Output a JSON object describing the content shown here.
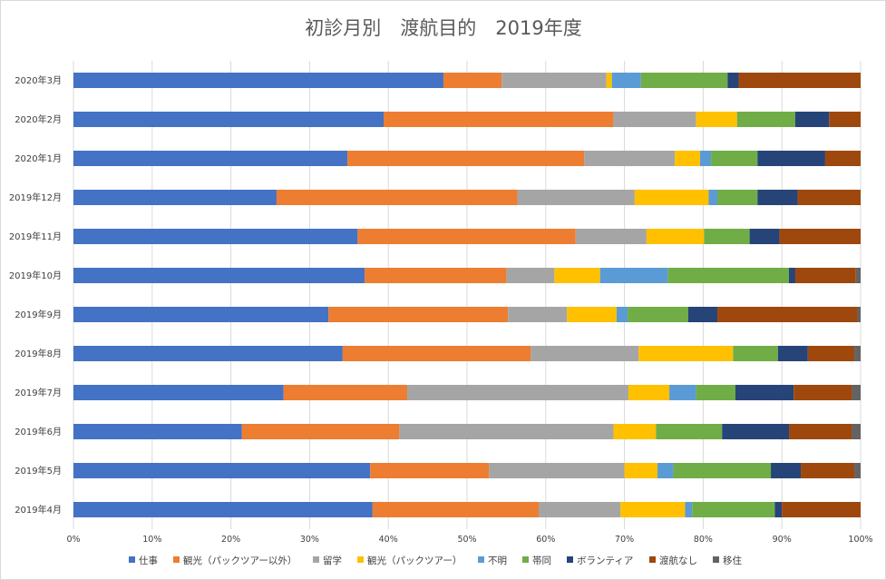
{
  "chart_data": {
    "type": "bar",
    "orientation": "horizontal",
    "stacked": "percent",
    "title": "初診月別　渡航目的　2019年度",
    "xlabel": "",
    "ylabel": "",
    "xlim": [
      0,
      100
    ],
    "x_ticks": [
      "0%",
      "10%",
      "20%",
      "30%",
      "40%",
      "50%",
      "60%",
      "70%",
      "80%",
      "90%",
      "100%"
    ],
    "grid": true,
    "legend_position": "bottom",
    "categories": [
      "2020年3月",
      "2020年2月",
      "2020年1月",
      "2019年12月",
      "2019年11月",
      "2019年10月",
      "2019年9月",
      "2019年8月",
      "2019年7月",
      "2019年6月",
      "2019年5月",
      "2019年4月"
    ],
    "series": [
      {
        "name": "仕事",
        "color": "#4472C4",
        "values": [
          47.0,
          39.4,
          34.8,
          25.8,
          36.1,
          37.0,
          32.4,
          34.2,
          26.7,
          21.4,
          37.7,
          38.0
        ]
      },
      {
        "name": "観光（パックツアー以外）",
        "color": "#ED7D31",
        "values": [
          7.4,
          29.2,
          30.1,
          30.6,
          27.7,
          18.0,
          22.8,
          23.9,
          15.7,
          20.0,
          15.1,
          21.1
        ]
      },
      {
        "name": "留学",
        "color": "#A5A5A5",
        "values": [
          13.3,
          10.5,
          11.5,
          14.9,
          9.0,
          6.1,
          7.5,
          13.7,
          28.1,
          27.2,
          17.2,
          10.4
        ]
      },
      {
        "name": "観光（パックツアー）",
        "color": "#FFC000",
        "values": [
          0.7,
          5.2,
          3.2,
          9.4,
          7.3,
          5.8,
          6.3,
          12.0,
          5.2,
          5.4,
          4.2,
          8.2
        ]
      },
      {
        "name": "不明",
        "color": "#5B9BD5",
        "values": [
          3.7,
          0.0,
          1.4,
          1.1,
          0.0,
          8.6,
          1.4,
          0.0,
          3.4,
          0.0,
          2.0,
          0.9
        ]
      },
      {
        "name": "帯同",
        "color": "#70AD47",
        "values": [
          11.0,
          7.4,
          5.9,
          5.1,
          5.8,
          15.4,
          7.7,
          5.7,
          5.0,
          8.4,
          12.4,
          10.5
        ]
      },
      {
        "name": "ボランティア",
        "color": "#264478",
        "values": [
          1.4,
          4.3,
          8.6,
          5.1,
          3.8,
          0.8,
          3.7,
          3.8,
          7.4,
          8.5,
          3.8,
          0.9
        ]
      },
      {
        "name": "渡航なし",
        "color": "#9E480E",
        "values": [
          15.5,
          4.0,
          4.5,
          8.0,
          10.3,
          7.7,
          17.8,
          5.9,
          7.4,
          8.0,
          6.8,
          10.0
        ]
      },
      {
        "name": "移住",
        "color": "#636363",
        "values": [
          0.0,
          0.0,
          0.0,
          0.0,
          0.0,
          0.6,
          0.4,
          0.8,
          1.1,
          1.1,
          0.8,
          0.0
        ]
      }
    ]
  }
}
